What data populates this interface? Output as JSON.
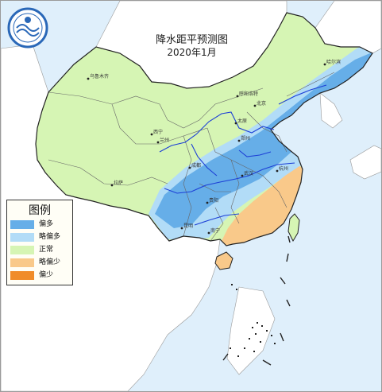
{
  "title": "降水距平预测图",
  "subtitle": "2020年1月",
  "colors": {
    "sea": "#dfeffb",
    "land_outside": "#ffffff",
    "more": "#66aee8",
    "slightly_more": "#b2dcf7",
    "normal": "#d6f5b4",
    "slightly_less": "#f9c98a",
    "less": "#f08c2a",
    "river": "#1c3fd6",
    "border": "#333333"
  },
  "legend": {
    "title": "图例",
    "items": [
      {
        "label": "偏多",
        "color": "#66aee8"
      },
      {
        "label": "略偏多",
        "color": "#b2dcf7"
      },
      {
        "label": "正常",
        "color": "#d6f5b4"
      },
      {
        "label": "略偏少",
        "color": "#f9c98a"
      },
      {
        "label": "偏少",
        "color": "#f08c2a"
      }
    ]
  },
  "cities": [
    {
      "name": "乌鲁木齐"
    },
    {
      "name": "哈尔滨"
    },
    {
      "name": "呼和浩特"
    },
    {
      "name": "北京"
    },
    {
      "name": "太原"
    },
    {
      "name": "郑州"
    },
    {
      "name": "西宁"
    },
    {
      "name": "兰州"
    },
    {
      "name": "成都"
    },
    {
      "name": "拉萨"
    },
    {
      "name": "贵阳"
    },
    {
      "name": "昆明"
    },
    {
      "name": "南宁"
    },
    {
      "name": "武汉"
    },
    {
      "name": "杭州"
    }
  ]
}
